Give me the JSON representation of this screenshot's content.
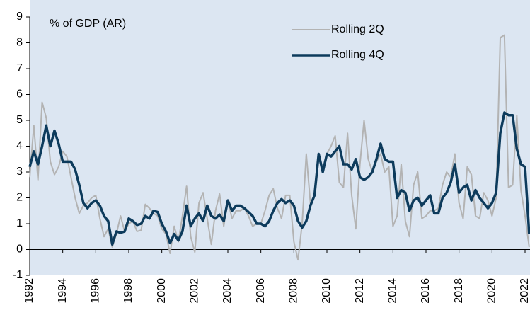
{
  "chart_data": {
    "type": "line",
    "annotation": "% of GDP (AR)",
    "x": [
      1992,
      1992.25,
      1992.5,
      1992.75,
      1993,
      1993.25,
      1993.5,
      1993.75,
      1994,
      1994.25,
      1994.5,
      1994.75,
      1995,
      1995.25,
      1995.5,
      1995.75,
      1996,
      1996.25,
      1996.5,
      1996.75,
      1997,
      1997.25,
      1997.5,
      1997.75,
      1998,
      1998.25,
      1998.5,
      1998.75,
      1999,
      1999.25,
      1999.5,
      1999.75,
      2000,
      2000.25,
      2000.5,
      2000.75,
      2001,
      2001.25,
      2001.5,
      2001.75,
      2002,
      2002.25,
      2002.5,
      2002.75,
      2003,
      2003.25,
      2003.5,
      2003.75,
      2004,
      2004.25,
      2004.5,
      2004.75,
      2005,
      2005.25,
      2005.5,
      2005.75,
      2006,
      2006.25,
      2006.5,
      2006.75,
      2007,
      2007.25,
      2007.5,
      2007.75,
      2008,
      2008.25,
      2008.5,
      2008.75,
      2009,
      2009.25,
      2009.5,
      2009.75,
      2010,
      2010.25,
      2010.5,
      2010.75,
      2011,
      2011.25,
      2011.5,
      2011.75,
      2012,
      2012.25,
      2012.5,
      2012.75,
      2013,
      2013.25,
      2013.5,
      2013.75,
      2014,
      2014.25,
      2014.5,
      2014.75,
      2015,
      2015.25,
      2015.5,
      2015.75,
      2016,
      2016.25,
      2016.5,
      2016.75,
      2017,
      2017.25,
      2017.5,
      2017.75,
      2018,
      2018.25,
      2018.5,
      2018.75,
      2019,
      2019.25,
      2019.5,
      2019.75,
      2020,
      2020.25,
      2020.5,
      2020.75,
      2021,
      2021.25,
      2021.5,
      2021.75,
      2022,
      2022.25
    ],
    "series": [
      {
        "name": "Rolling 2Q",
        "color": "#b3b3b3",
        "width": 2,
        "values": [
          2.8,
          4.8,
          2.7,
          5.7,
          5.1,
          3.4,
          2.9,
          3.2,
          3.8,
          3.6,
          2.8,
          2.0,
          1.4,
          1.7,
          1.8,
          2.0,
          2.1,
          1.2,
          0.5,
          0.8,
          0.1,
          0.6,
          1.3,
          0.7,
          1.0,
          1.1,
          0.7,
          0.75,
          1.75,
          1.6,
          1.4,
          1.3,
          0.8,
          0.6,
          -0.15,
          0.9,
          0.3,
          1.3,
          2.45,
          0.5,
          -0.1,
          1.8,
          2.2,
          1.2,
          0.2,
          1.5,
          2.15,
          0.9,
          1.9,
          1.2,
          1.5,
          1.5,
          1.6,
          1.3,
          0.9,
          1.0,
          1.0,
          1.5,
          2.1,
          2.35,
          1.6,
          1.2,
          2.1,
          2.1,
          0.3,
          -0.4,
          1.0,
          3.7,
          1.8,
          2.1,
          3.7,
          3.1,
          3.7,
          4.0,
          4.4,
          2.6,
          2.4,
          4.5,
          2.1,
          0.8,
          3.3,
          5.0,
          3.5,
          3.0,
          3.4,
          3.7,
          3.0,
          3.2,
          0.9,
          1.3,
          3.3,
          1.1,
          0.5,
          2.5,
          3.0,
          1.2,
          1.3,
          1.5,
          1.5,
          1.6,
          2.5,
          3.0,
          2.8,
          3.7,
          1.8,
          1.2,
          3.2,
          2.9,
          1.3,
          1.2,
          2.2,
          1.9,
          1.3,
          2.0,
          8.2,
          8.3,
          2.4,
          2.5,
          5.2,
          2.3,
          1.3,
          0.1
        ]
      },
      {
        "name": "Rolling 4Q",
        "color": "#0d3b5c",
        "width": 3.5,
        "values": [
          3.2,
          3.8,
          3.3,
          4.0,
          4.8,
          4.0,
          4.6,
          4.1,
          3.4,
          3.4,
          3.4,
          3.1,
          2.5,
          1.8,
          1.6,
          1.8,
          1.9,
          1.7,
          1.3,
          1.1,
          0.2,
          0.7,
          0.65,
          0.7,
          1.2,
          1.1,
          0.95,
          1.0,
          1.3,
          1.2,
          1.5,
          1.45,
          1.0,
          0.7,
          0.25,
          0.6,
          0.35,
          0.7,
          1.7,
          0.9,
          1.2,
          1.4,
          1.1,
          1.7,
          1.3,
          1.2,
          1.35,
          1.1,
          1.9,
          1.5,
          1.7,
          1.7,
          1.6,
          1.45,
          1.3,
          1.0,
          1.0,
          0.9,
          1.1,
          1.5,
          1.8,
          1.95,
          1.8,
          1.9,
          1.7,
          1.1,
          0.85,
          1.1,
          1.7,
          2.1,
          3.7,
          3.0,
          3.7,
          3.6,
          3.8,
          4.0,
          3.3,
          3.3,
          3.1,
          3.5,
          2.8,
          2.7,
          2.8,
          3.0,
          3.5,
          4.1,
          3.5,
          3.4,
          3.4,
          2.0,
          2.3,
          2.2,
          1.5,
          1.9,
          2.0,
          1.7,
          1.9,
          2.1,
          1.4,
          1.4,
          2.0,
          2.2,
          2.6,
          3.3,
          2.2,
          2.4,
          2.5,
          1.9,
          2.3,
          2.0,
          1.8,
          1.6,
          1.8,
          2.2,
          4.5,
          5.3,
          5.2,
          5.2,
          3.9,
          3.3,
          3.2,
          0.6
        ]
      }
    ],
    "xlim": [
      1992,
      2022.3
    ],
    "xticks": [
      1992,
      1994,
      1996,
      1998,
      2000,
      2002,
      2004,
      2006,
      2008,
      2010,
      2012,
      2014,
      2016,
      2018,
      2020,
      2022
    ],
    "ylim": [
      -1,
      9
    ],
    "yticks": [
      -1,
      0,
      1,
      2,
      3,
      4,
      5,
      6,
      7,
      8,
      9
    ],
    "plot_background": "#dce6f2"
  }
}
